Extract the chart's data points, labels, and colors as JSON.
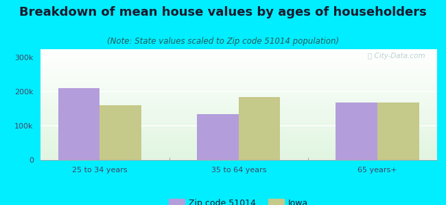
{
  "title": "Breakdown of mean house values by ages of householders",
  "subtitle": "(Note: State values scaled to Zip code 51014 population)",
  "categories": [
    "25 to 34 years",
    "35 to 64 years",
    "65 years+"
  ],
  "zip_values": [
    210000,
    135000,
    168000
  ],
  "iowa_values": [
    160000,
    185000,
    168000
  ],
  "zip_color": "#b39ddb",
  "iowa_color": "#c5c98a",
  "zip_label": "Zip code 51014",
  "iowa_label": "Iowa",
  "ylim": [
    0,
    325000
  ],
  "yticks": [
    0,
    100000,
    200000,
    300000
  ],
  "ytick_labels": [
    "0",
    "100k",
    "200k",
    "300k"
  ],
  "background_color": "#00eeff",
  "title_color": "#1a1a2e",
  "subtitle_color": "#2a5a5a",
  "tick_color": "#444466",
  "title_fontsize": 13,
  "subtitle_fontsize": 8.5,
  "tick_fontsize": 8,
  "legend_fontsize": 9,
  "bar_width": 0.3
}
